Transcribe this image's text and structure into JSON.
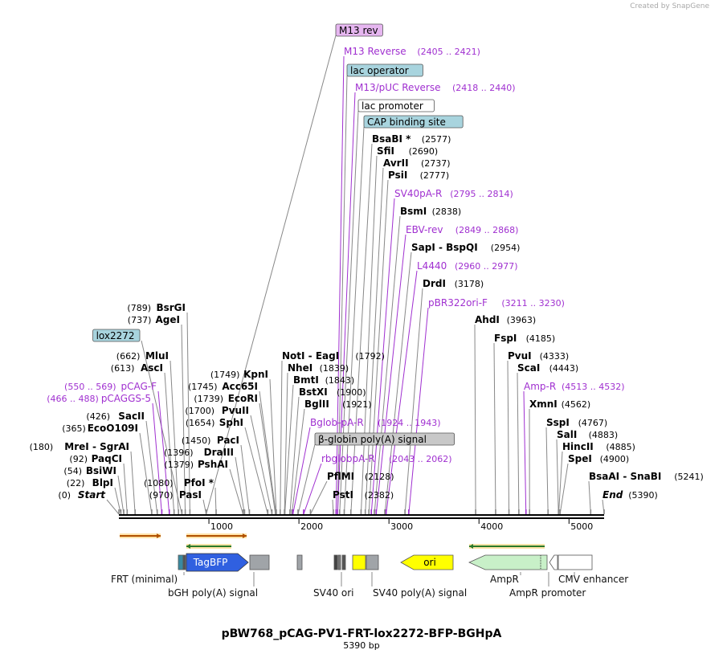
{
  "credit": "Created by SnapGene",
  "title": "pBW768_pCAG-PV1-FRT-lox2272-BFP-BGHpA",
  "subtitle": "5390 bp",
  "ticks": [
    "1000",
    "2000",
    "3000",
    "4000",
    "5000"
  ],
  "top_labels": [
    {
      "name": "M13 rev",
      "boxed": "m13",
      "marker": 970
    },
    {
      "name": "M13 Reverse",
      "range": "(2405 .. 2421)",
      "style": "primer",
      "marker": 2412
    },
    {
      "name": "lac operator",
      "boxed": "blue",
      "marker": 2429
    },
    {
      "name": "M13/pUC Reverse",
      "range": "(2418 .. 2440)",
      "style": "primer",
      "marker": 2429
    },
    {
      "name": "lac promoter",
      "boxed": "white",
      "marker": 2452
    },
    {
      "name": "CAP binding site",
      "boxed": "blue",
      "marker": 2503
    },
    {
      "name": "BsaBI *",
      "pos": "(2577)",
      "style": "enzyme",
      "marker": 2577
    },
    {
      "name": "SfiI",
      "pos": "(2690)",
      "style": "enzyme",
      "marker": 2690
    },
    {
      "name": "AvrII",
      "pos": "(2737)",
      "style": "enzyme",
      "marker": 2737
    },
    {
      "name": "PsiI",
      "pos": "(2777)",
      "style": "enzyme",
      "marker": 2777
    },
    {
      "name": "SV40pA-R",
      "range": "(2795 .. 2814)",
      "style": "primer",
      "marker": 2804
    },
    {
      "name": "BsmI",
      "pos": "(2838)",
      "style": "enzyme",
      "marker": 2838
    },
    {
      "name": "EBV-rev",
      "range": "(2849 .. 2868)",
      "style": "primer",
      "marker": 2858
    },
    {
      "name": "SapI - BspQI",
      "pos": "(2954)",
      "style": "enzyme",
      "marker": 2954
    },
    {
      "name": "L4440",
      "range": "(2960 .. 2977)",
      "style": "primer",
      "marker": 2968
    },
    {
      "name": "DrdI",
      "pos": "(3178)",
      "style": "enzyme",
      "marker": 3178
    },
    {
      "name": "pBR322ori-F",
      "range": "(3211 .. 3230)",
      "style": "primer",
      "marker": 3220
    }
  ],
  "right_labels": [
    {
      "name": "AhdI",
      "pos": "(3963)",
      "style": "enzyme",
      "marker": 3963
    },
    {
      "name": "FspI",
      "pos": "(4185)",
      "style": "enzyme",
      "marker": 4185
    },
    {
      "name": "PvuI",
      "pos": "(4333)",
      "style": "enzyme",
      "marker": 4333
    },
    {
      "name": "ScaI",
      "pos": "(4443)",
      "style": "enzyme",
      "marker": 4443
    },
    {
      "name": "Amp-R",
      "range": "(4513 .. 4532)",
      "style": "primer",
      "marker": 4522
    },
    {
      "name": "XmnI",
      "pos": "(4562)",
      "style": "enzyme",
      "marker": 4562
    },
    {
      "name": "SspI",
      "pos": "(4767)",
      "style": "enzyme",
      "marker": 4767
    },
    {
      "name": "SalI",
      "pos": "(4883)",
      "style": "enzyme",
      "marker": 4883
    },
    {
      "name": "HincII",
      "pos": "(4885)",
      "style": "enzyme",
      "marker": 4885
    },
    {
      "name": "SpeI",
      "pos": "(4900)",
      "style": "enzyme",
      "marker": 4900
    },
    {
      "name": "BsaAI - SnaBI",
      "pos": "(5241)",
      "style": "enzyme",
      "marker": 5241
    },
    {
      "name": "End",
      "pos": "(5390)",
      "style": "enzyme-italic",
      "marker": 5390
    }
  ],
  "left_labels": [
    {
      "name": "BsrGI",
      "pos": "(789)",
      "style": "enzyme",
      "marker": 789
    },
    {
      "name": "AgeI",
      "pos": "(737)",
      "style": "enzyme",
      "marker": 737
    },
    {
      "name": "lox2272",
      "boxed": "blue",
      "marker": 700
    },
    {
      "name": "MluI",
      "pos": "(662)",
      "style": "enzyme",
      "marker": 662
    },
    {
      "name": "AscI",
      "pos": "(613)",
      "style": "enzyme",
      "marker": 613
    },
    {
      "name": "pCAG-F",
      "range": "(550 .. 569)",
      "style": "primer",
      "marker": 560
    },
    {
      "name": "pCAGGS-5",
      "range": "(466 .. 488)",
      "style": "primer",
      "marker": 477
    },
    {
      "name": "SacII",
      "pos": "(426)",
      "style": "enzyme",
      "marker": 426
    },
    {
      "name": "EcoO109I",
      "pos": "(365)",
      "style": "enzyme",
      "marker": 365
    },
    {
      "name": "MreI - SgrAI",
      "pos": "(180)",
      "style": "enzyme",
      "marker": 180
    },
    {
      "name": "PaqCI",
      "pos": "(92)",
      "style": "enzyme",
      "marker": 92
    },
    {
      "name": "BsiWI",
      "pos": "(54)",
      "style": "enzyme",
      "marker": 54
    },
    {
      "name": "BlpI",
      "pos": "(22)",
      "style": "enzyme",
      "marker": 22
    },
    {
      "name": "Start",
      "pos": "(0)",
      "style": "enzyme-italic",
      "marker": 0
    }
  ],
  "mid_left_labels": [
    {
      "name": "KpnI",
      "pos": "(1749)",
      "style": "enzyme",
      "marker": 1749
    },
    {
      "name": "Acc65I",
      "pos": "(1745)",
      "style": "enzyme",
      "marker": 1745
    },
    {
      "name": "EcoRI",
      "pos": "(1739)",
      "style": "enzyme",
      "marker": 1739
    },
    {
      "name": "PvuII",
      "pos": "(1700)",
      "style": "enzyme",
      "marker": 1700
    },
    {
      "name": "SphI",
      "pos": "(1654)",
      "style": "enzyme",
      "marker": 1654
    },
    {
      "name": "PacI",
      "pos": "(1450)",
      "style": "enzyme",
      "marker": 1450
    },
    {
      "name": "DraIII",
      "pos": "(1396)",
      "style": "enzyme",
      "marker": 1396
    },
    {
      "name": "PshAI",
      "pos": "(1379)",
      "style": "enzyme",
      "marker": 1379
    },
    {
      "name": "PfoI *",
      "pos": "(1080)",
      "style": "enzyme",
      "marker": 1080
    },
    {
      "name": "PasI",
      "pos": "(970)",
      "style": "enzyme",
      "marker": 970
    }
  ],
  "mid_labels": [
    {
      "name": "NotI - EagI",
      "pos": "(1792)",
      "style": "enzyme",
      "marker": 1792
    },
    {
      "name": "NheI",
      "pos": "(1839)",
      "style": "enzyme",
      "marker": 1839
    },
    {
      "name": "BmtI",
      "pos": "(1843)",
      "style": "enzyme",
      "marker": 1843
    },
    {
      "name": "BstXI",
      "pos": "(1900)",
      "style": "enzyme",
      "marker": 1900
    },
    {
      "name": "BglII",
      "pos": "(1921)",
      "style": "enzyme",
      "marker": 1921
    },
    {
      "name": "Bglob-pA-R",
      "range": "(1924 .. 1943)",
      "style": "primer",
      "marker": 1933
    },
    {
      "name": "β-globin poly(A) signal",
      "boxed": "gray",
      "marker": 1990
    },
    {
      "name": "rbglobpA-R",
      "range": "(2043 .. 2062)",
      "style": "primer",
      "marker": 2052
    },
    {
      "name": "PflMI",
      "pos": "(2128)",
      "style": "enzyme",
      "marker": 2128
    },
    {
      "name": "PstI",
      "pos": "(2382)",
      "style": "enzyme",
      "marker": 2382
    }
  ],
  "features": [
    {
      "name": "TagBFP",
      "color": "#3060e0",
      "labelColor": "#ffffff"
    },
    {
      "name": "ori",
      "color": "#ffff00",
      "labelColor": "#000000"
    }
  ],
  "bottom_labels": [
    {
      "name": "FRT (minimal)"
    },
    {
      "name": "bGH poly(A) signal"
    },
    {
      "name": "SV40 ori"
    },
    {
      "name": "SV40 poly(A) signal"
    },
    {
      "name": "AmpR"
    },
    {
      "name": "CMV enhancer"
    },
    {
      "name": "AmpR promoter"
    }
  ],
  "colors": {
    "primer": "#a030d0",
    "enzyme": "#000000",
    "line": "#888888",
    "blue_box": "#a8d4de",
    "m13_box": "#e6b6f0",
    "gray_box": "#c8c8c8"
  }
}
